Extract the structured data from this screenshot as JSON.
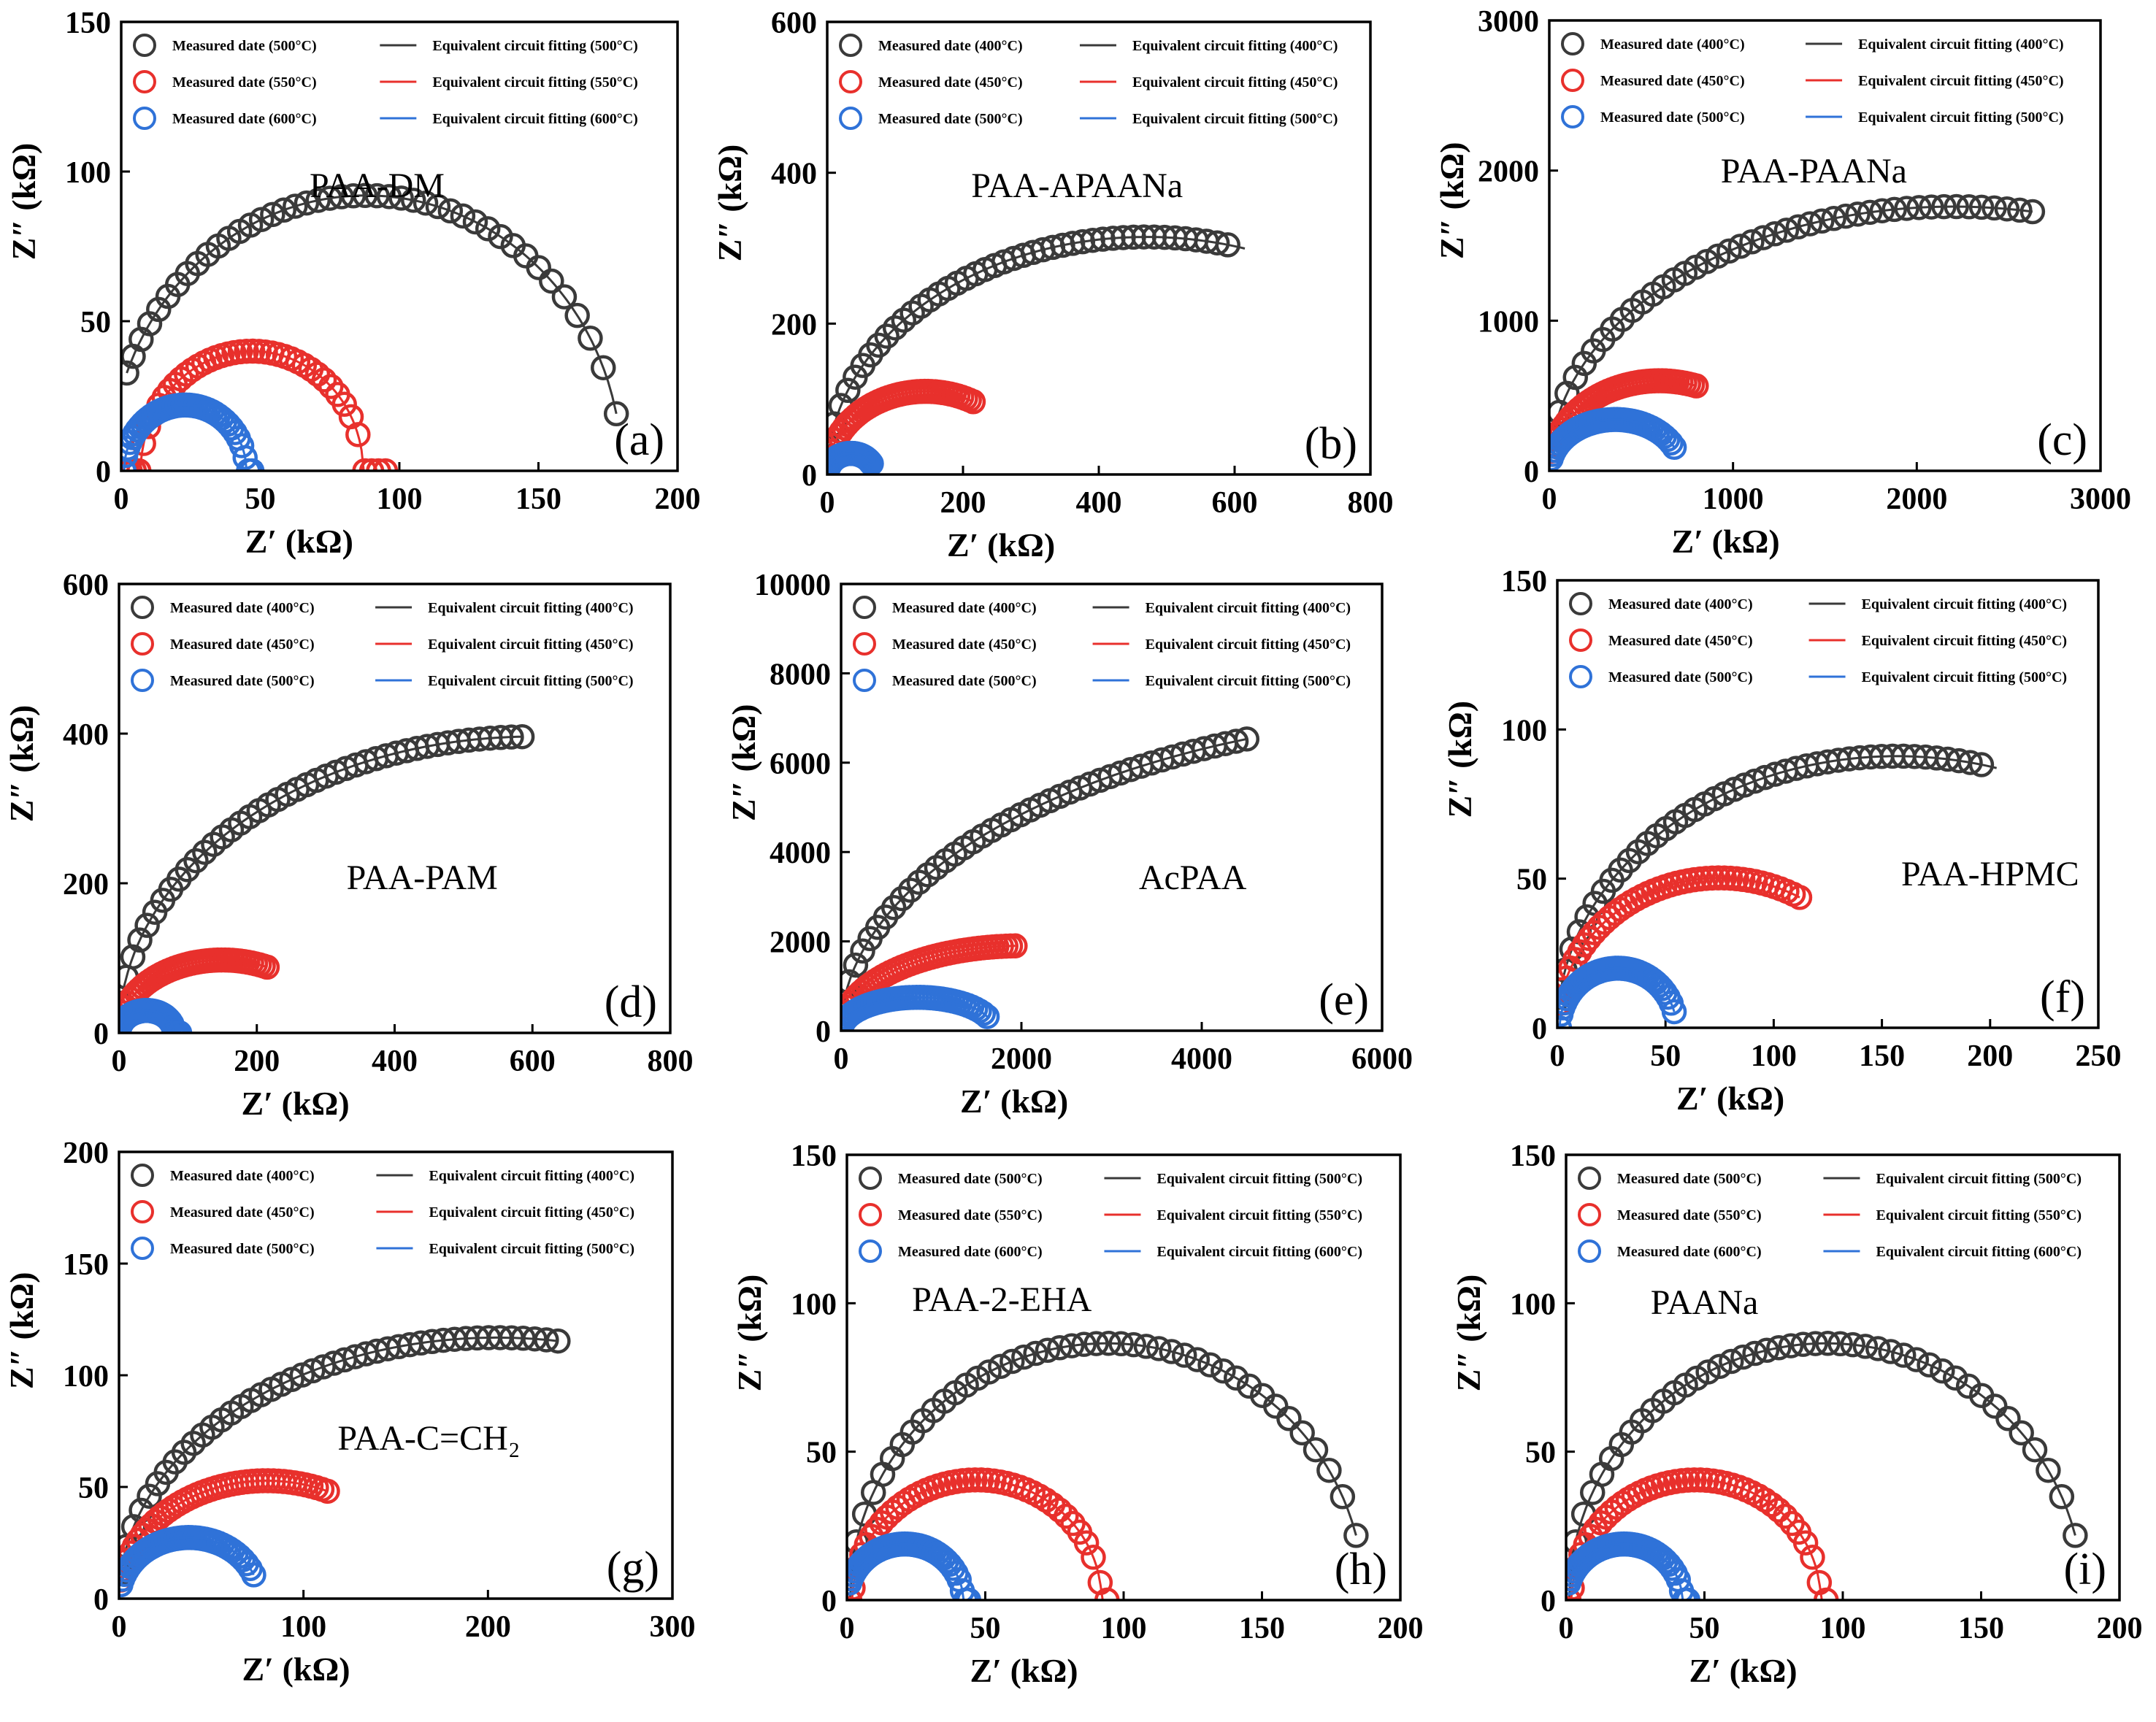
{
  "figure": {
    "x_axis_label": "Z′ (kΩ)",
    "y_axis_label": "Z″ (kΩ)"
  },
  "chart_data": [
    {
      "type": "scatter",
      "panel": "(a)",
      "sample": "PAA-DM",
      "xlim": [
        0,
        200
      ],
      "ylim": [
        0,
        150
      ],
      "xticks": [
        0,
        50,
        100,
        150,
        200
      ],
      "yticks": [
        0,
        50,
        100,
        150
      ],
      "legend_position": "top",
      "series": [
        {
          "name": "Measured date (500°C)",
          "fit_name": "Equivalent circuit fitting (500°C)",
          "color": "#3a3a3a",
          "center": 88,
          "radius": 92,
          "x_start": 2,
          "x_end": 178
        },
        {
          "name": "Measured date (550°C)",
          "fit_name": "Equivalent circuit fitting (550°C)",
          "color": "#e8302c",
          "center": 47,
          "radius": 40,
          "x_start": 2,
          "x_end": 95
        },
        {
          "name": "Measured date (600°C)",
          "fit_name": "Equivalent circuit fitting (600°C)",
          "color": "#2f72d8",
          "center": 23,
          "radius": 22,
          "x_start": 1,
          "x_end": 47
        }
      ]
    },
    {
      "type": "scatter",
      "panel": "(b)",
      "sample": "PAA-APAANa",
      "xlim": [
        0,
        800
      ],
      "ylim": [
        0,
        600
      ],
      "xticks": [
        0,
        200,
        400,
        600,
        800
      ],
      "yticks": [
        0,
        200,
        400,
        600
      ],
      "legend_position": "top",
      "series": [
        {
          "name": "Measured date (400°C)",
          "fit_name": "Equivalent circuit fitting (400°C)",
          "color": "#3a3a3a",
          "center": 470,
          "radius": 470,
          "y_scale": 0.67,
          "x_start": 3,
          "x_end": 590,
          "fit_x_end": 615
        },
        {
          "name": "Measured date (450°C)",
          "fit_name": "Equivalent circuit fitting (450°C)",
          "color": "#e8302c",
          "center": 145,
          "radius": 145,
          "y_scale": 0.76,
          "x_start": 3,
          "x_end": 215
        },
        {
          "name": "Measured date (500°C)",
          "fit_name": "Equivalent circuit fitting (500°C)",
          "color": "#2f72d8",
          "center": 35,
          "radius": 35,
          "y_scale": 0.8,
          "x_start": 2,
          "x_end": 65
        }
      ]
    },
    {
      "type": "scatter",
      "panel": "(c)",
      "sample": "PAA-PAANa",
      "xlim": [
        0,
        3000
      ],
      "ylim": [
        0,
        3000
      ],
      "xticks": [
        0,
        1000,
        2000,
        3000
      ],
      "yticks": [
        0,
        1000,
        2000,
        3000
      ],
      "legend_position": "top",
      "series": [
        {
          "name": "Measured date (400°C)",
          "fit_name": "Equivalent circuit fitting (400°C)",
          "color": "#3a3a3a",
          "center": 2200,
          "radius": 2200,
          "y_scale": 0.8,
          "x_start": 20,
          "x_end": 2630
        },
        {
          "name": "Measured date (450°C)",
          "fit_name": "Equivalent circuit fitting (450°C)",
          "color": "#e8302c",
          "center": 600,
          "radius": 600,
          "y_scale": 1.0,
          "x_start": 15,
          "x_end": 800
        },
        {
          "name": "Measured date (500°C)",
          "fit_name": "Equivalent circuit fitting (500°C)",
          "color": "#2f72d8",
          "center": 360,
          "radius": 360,
          "y_scale": 0.95,
          "x_start": 10,
          "x_end": 680
        }
      ]
    },
    {
      "type": "scatter",
      "panel": "(d)",
      "sample": "PAA-PAM",
      "xlim": [
        0,
        800
      ],
      "ylim": [
        0,
        600
      ],
      "xticks": [
        0,
        200,
        400,
        600,
        800
      ],
      "yticks": [
        0,
        200,
        400,
        600
      ],
      "legend_position": "top",
      "series": [
        {
          "name": "Measured date (400°C)",
          "fit_name": "Equivalent circuit fitting (400°C)",
          "color": "#3a3a3a",
          "center": 600,
          "radius": 600,
          "y_scale": 0.66,
          "x_start": 3,
          "x_end": 585
        },
        {
          "name": "Measured date (450°C)",
          "fit_name": "Equivalent circuit fitting (450°C)",
          "color": "#e8302c",
          "center": 150,
          "radius": 150,
          "y_scale": 0.65,
          "x_start": 3,
          "x_end": 215
        },
        {
          "name": "Measured date (500°C)",
          "fit_name": "Equivalent circuit fitting (500°C)",
          "color": "#2f72d8",
          "center": 40,
          "radius": 40,
          "y_scale": 0.75,
          "x_start": 2,
          "x_end": 88
        }
      ]
    },
    {
      "type": "scatter",
      "panel": "(e)",
      "sample": "AcPAA",
      "xlim": [
        0,
        6000
      ],
      "ylim": [
        0,
        10000
      ],
      "xticks": [
        0,
        2000,
        4000,
        6000
      ],
      "yticks": [
        0,
        2000,
        4000,
        6000,
        8000,
        10000
      ],
      "legend_position": "top",
      "series": [
        {
          "name": "Measured date (400°C)",
          "fit_name": "Equivalent circuit fitting (400°C)",
          "color": "#3a3a3a",
          "center": 7500,
          "radius": 7500,
          "y_scale": 0.95,
          "x_start": 30,
          "x_end": 4500
        },
        {
          "name": "Measured date (450°C)",
          "fit_name": "Equivalent circuit fitting (450°C)",
          "color": "#e8302c",
          "center": 2000,
          "radius": 2000,
          "y_scale": 0.95,
          "x_start": 20,
          "x_end": 1930
        },
        {
          "name": "Measured date (500°C)",
          "fit_name": "Equivalent circuit fitting (500°C)",
          "color": "#2f72d8",
          "center": 850,
          "radius": 850,
          "y_scale": 0.88,
          "x_start": 15,
          "x_end": 1620
        }
      ]
    },
    {
      "type": "scatter",
      "panel": "(f)",
      "sample": "PAA-HPMC",
      "xlim": [
        0,
        250
      ],
      "ylim": [
        0,
        150
      ],
      "xticks": [
        0,
        50,
        100,
        150,
        200,
        250
      ],
      "yticks": [
        0,
        50,
        100,
        150
      ],
      "legend_position": "top",
      "series": [
        {
          "name": "Measured date (400°C)",
          "fit_name": "Equivalent circuit fitting (400°C)",
          "color": "#3a3a3a",
          "center": 157,
          "radius": 157,
          "y_scale": 0.58,
          "x_start": 1,
          "x_end": 196,
          "fit_x_end": 203
        },
        {
          "name": "Measured date (450°C)",
          "fit_name": "Equivalent circuit fitting (450°C)",
          "color": "#e8302c",
          "center": 75,
          "radius": 75,
          "y_scale": 0.67,
          "x_start": 1,
          "x_end": 112
        },
        {
          "name": "Measured date (500°C)",
          "fit_name": "Equivalent circuit fitting (500°C)",
          "color": "#2f72d8",
          "center": 28,
          "radius": 27,
          "y_scale": 0.74,
          "x_start": 1,
          "x_end": 54
        }
      ]
    },
    {
      "type": "scatter",
      "panel": "(g)",
      "sample": "PAA-C=CH₂",
      "xlim": [
        0,
        300
      ],
      "ylim": [
        0,
        200
      ],
      "xticks": [
        0,
        100,
        200,
        300
      ],
      "yticks": [
        0,
        50,
        100,
        150,
        200
      ],
      "legend_position": "top",
      "series": [
        {
          "name": "Measured date (400°C)",
          "fit_name": "Equivalent circuit fitting (400°C)",
          "color": "#3a3a3a",
          "center": 205,
          "radius": 205,
          "y_scale": 0.57,
          "x_start": 1,
          "x_end": 238
        },
        {
          "name": "Measured date (450°C)",
          "fit_name": "Equivalent circuit fitting (450°C)",
          "color": "#e8302c",
          "center": 80,
          "radius": 80,
          "y_scale": 0.66,
          "x_start": 1,
          "x_end": 113
        },
        {
          "name": "Measured date (500°C)",
          "fit_name": "Equivalent circuit fitting (500°C)",
          "color": "#2f72d8",
          "center": 38,
          "radius": 38,
          "y_scale": 0.72,
          "x_start": 1,
          "x_end": 73
        }
      ]
    },
    {
      "type": "scatter",
      "panel": "(h)",
      "sample": "PAA-2-EHA",
      "xlim": [
        0,
        200
      ],
      "ylim": [
        0,
        150
      ],
      "xticks": [
        0,
        50,
        100,
        150,
        200
      ],
      "yticks": [
        0,
        50,
        100,
        150
      ],
      "legend_position": "top",
      "series": [
        {
          "name": "Measured date (500°C)",
          "fit_name": "Equivalent circuit fitting (500°C)",
          "color": "#3a3a3a",
          "center": 94,
          "radius": 93,
          "y_scale": 0.93,
          "x_start": 1,
          "x_end": 184
        },
        {
          "name": "Measured date (550°C)",
          "fit_name": "Equivalent circuit fitting (550°C)",
          "color": "#e8302c",
          "center": 47,
          "radius": 45,
          "y_scale": 0.9,
          "x_start": 1,
          "x_end": 94
        },
        {
          "name": "Measured date (600°C)",
          "fit_name": "Equivalent circuit fitting (600°C)",
          "color": "#2f72d8",
          "center": 21,
          "radius": 21,
          "y_scale": 0.9,
          "x_start": 1,
          "x_end": 44
        }
      ]
    },
    {
      "type": "scatter",
      "panel": "(i)",
      "sample": "PAANa",
      "xlim": [
        0,
        200
      ],
      "ylim": [
        0,
        150
      ],
      "xticks": [
        0,
        50,
        100,
        150,
        200
      ],
      "yticks": [
        0,
        50,
        100,
        150
      ],
      "legend_position": "top",
      "series": [
        {
          "name": "Measured date (500°C)",
          "fit_name": "Equivalent circuit fitting (500°C)",
          "color": "#3a3a3a",
          "center": 94,
          "radius": 93,
          "y_scale": 0.93,
          "x_start": 1,
          "x_end": 184
        },
        {
          "name": "Measured date (550°C)",
          "fit_name": "Equivalent circuit fitting (550°C)",
          "color": "#e8302c",
          "center": 47,
          "radius": 45,
          "y_scale": 0.9,
          "x_start": 1,
          "x_end": 94
        },
        {
          "name": "Measured date (600°C)",
          "fit_name": "Equivalent circuit fitting (600°C)",
          "color": "#2f72d8",
          "center": 21,
          "radius": 21,
          "y_scale": 0.9,
          "x_start": 1,
          "x_end": 44
        }
      ]
    }
  ]
}
